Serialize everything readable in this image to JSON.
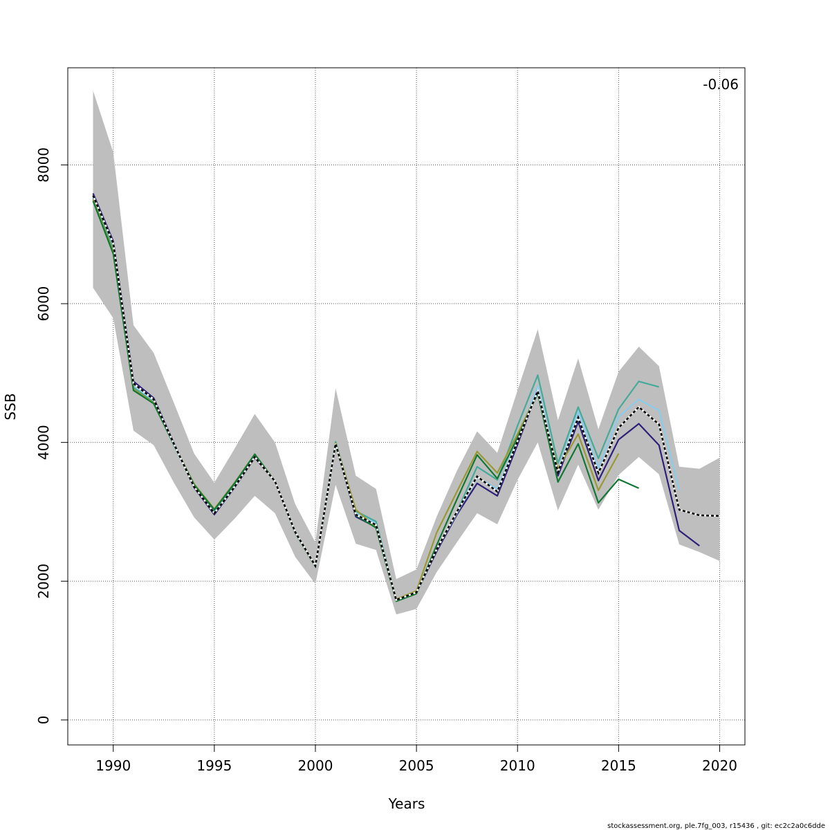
{
  "chart_data": {
    "type": "line",
    "xlabel": "Years",
    "ylabel": "SSB",
    "xlim": [
      1987.75,
      2021.25
    ],
    "ylim": [
      -360,
      9400
    ],
    "xticks": [
      1990,
      1995,
      2000,
      2005,
      2010,
      2015,
      2020
    ],
    "yticks": [
      0,
      2000,
      4000,
      6000,
      8000
    ],
    "grid": true,
    "annotation": "-0.06",
    "confidence_band": {
      "x": [
        1989,
        1990,
        1991,
        1992,
        1993,
        1994,
        1995,
        1996,
        1997,
        1998,
        1999,
        2000,
        2001,
        2002,
        2003,
        2004,
        2005,
        2006,
        2007,
        2008,
        2009,
        2010,
        2011,
        2012,
        2013,
        2014,
        2015,
        2016,
        2017,
        2018,
        2019,
        2020
      ],
      "lower": [
        6230,
        5790,
        4170,
        3960,
        3420,
        2920,
        2600,
        2900,
        3230,
        2980,
        2350,
        1960,
        3390,
        2540,
        2450,
        1520,
        1600,
        2130,
        2560,
        2980,
        2820,
        3460,
        4000,
        3020,
        3680,
        3030,
        3530,
        3790,
        3540,
        2530,
        2420,
        2290
      ],
      "upper": [
        9070,
        8180,
        5690,
        5290,
        4570,
        3840,
        3420,
        3910,
        4410,
        4000,
        3110,
        2560,
        4780,
        3520,
        3330,
        2030,
        2170,
        2930,
        3590,
        4160,
        3850,
        4750,
        5630,
        4320,
        5210,
        4190,
        5020,
        5380,
        5100,
        3650,
        3620,
        3780
      ]
    },
    "series": [
      {
        "color": "#000000",
        "dashed": true,
        "x": [
          1989,
          1990,
          1991,
          1992,
          1993,
          1994,
          1995,
          1996,
          1997,
          1998,
          1999,
          2000,
          2001,
          2002,
          2003,
          2004,
          2005,
          2006,
          2007,
          2008,
          2009,
          2010,
          2011,
          2012,
          2013,
          2014,
          2015,
          2016,
          2017,
          2018,
          2019,
          2020
        ],
        "y": [
          7560,
          6870,
          4850,
          4620,
          3980,
          3360,
          2980,
          3360,
          3790,
          3440,
          2710,
          2220,
          3980,
          2960,
          2810,
          1730,
          1840,
          2460,
          3000,
          3510,
          3290,
          4020,
          4740,
          3570,
          4360,
          3560,
          4210,
          4510,
          4260,
          3030,
          2950,
          2940
        ]
      },
      {
        "color": "#2e1f78",
        "dashed": false,
        "x": [
          1989,
          1990,
          1991,
          1992,
          1993,
          1994,
          1995,
          1996,
          1997,
          1998,
          1999,
          2000,
          2001,
          2002,
          2003,
          2004,
          2005,
          2006,
          2007,
          2008,
          2009,
          2010,
          2011,
          2012,
          2013,
          2014,
          2015,
          2016,
          2017,
          2018,
          2019
        ],
        "y": [
          7590,
          6900,
          4880,
          4640,
          3990,
          3350,
          2960,
          3350,
          3780,
          3440,
          2700,
          2220,
          3980,
          2930,
          2780,
          1730,
          1830,
          2430,
          2960,
          3410,
          3230,
          3970,
          4760,
          3520,
          4300,
          3450,
          4040,
          4270,
          3960,
          2730,
          2510
        ]
      },
      {
        "color": "#88ccee",
        "dashed": false,
        "x": [
          1989,
          1990,
          1991,
          1992,
          1993,
          1994,
          1995,
          1996,
          1997,
          1998,
          1999,
          2000,
          2001,
          2002,
          2003,
          2004,
          2005,
          2006,
          2007,
          2008,
          2009,
          2010,
          2011,
          2012,
          2013,
          2014,
          2015,
          2016,
          2017,
          2018
        ],
        "y": [
          7540,
          6830,
          4810,
          4590,
          3960,
          3370,
          3000,
          3380,
          3800,
          3440,
          2710,
          2220,
          4000,
          2990,
          2830,
          1730,
          1830,
          2460,
          2980,
          3500,
          3330,
          4070,
          4810,
          3600,
          4440,
          3630,
          4370,
          4620,
          4460,
          3310
        ]
      },
      {
        "color": "#44aa99",
        "dashed": false,
        "x": [
          1989,
          1990,
          1991,
          1992,
          1993,
          1994,
          1995,
          1996,
          1997,
          1998,
          1999,
          2000,
          2001,
          2002,
          2003,
          2004,
          2005,
          2006,
          2007,
          2008,
          2009,
          2010,
          2011,
          2012,
          2013,
          2014,
          2015,
          2016,
          2017
        ],
        "y": [
          7520,
          6790,
          4790,
          4580,
          3960,
          3380,
          3010,
          3400,
          3810,
          3440,
          2710,
          2220,
          4010,
          3010,
          2860,
          1730,
          1830,
          2460,
          3000,
          3650,
          3460,
          4240,
          4970,
          3700,
          4510,
          3770,
          4480,
          4880,
          4800
        ]
      },
      {
        "color": "#999933",
        "dashed": false,
        "x": [
          1989,
          1990,
          1991,
          1992,
          1993,
          1994,
          1995,
          1996,
          1997,
          1998,
          1999,
          2000,
          2001,
          2002,
          2003,
          2004,
          2005,
          2006,
          2007,
          2008,
          2009,
          2010,
          2011,
          2012,
          2013,
          2014,
          2015
        ],
        "y": [
          7500,
          6750,
          4770,
          4570,
          3970,
          3400,
          3040,
          3420,
          3830,
          3440,
          2710,
          2220,
          3990,
          3030,
          2780,
          1740,
          1860,
          2700,
          3290,
          3870,
          3560,
          4120,
          4720,
          3620,
          4120,
          3310,
          3840
        ]
      },
      {
        "color": "#117733",
        "dashed": false,
        "x": [
          1989,
          1990,
          1991,
          1992,
          1993,
          1994,
          1995,
          1996,
          1997,
          1998,
          1999,
          2000,
          2001,
          2002,
          2003,
          2004,
          2005,
          2006,
          2007,
          2008,
          2009,
          2010,
          2011,
          2012,
          2013,
          2014,
          2015,
          2016
        ],
        "y": [
          7480,
          6720,
          4750,
          4560,
          3970,
          3390,
          3030,
          3410,
          3830,
          3440,
          2700,
          2210,
          3970,
          2950,
          2770,
          1710,
          1820,
          2520,
          3180,
          3820,
          3480,
          4070,
          4710,
          3430,
          3980,
          3130,
          3470,
          3340
        ]
      }
    ]
  },
  "footer": "stockassessment.org, ple.7fg_003, r15436 , git: ec2c2a0c6dde"
}
